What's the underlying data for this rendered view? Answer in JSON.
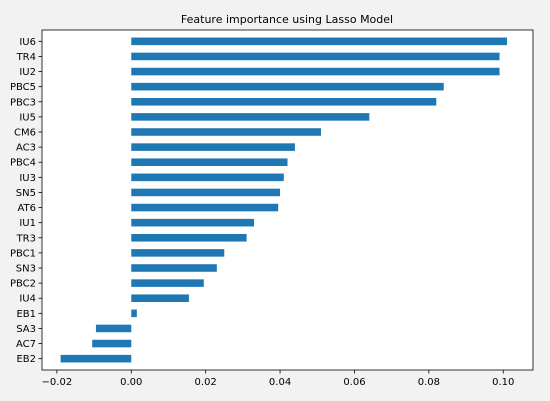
{
  "chart_data": {
    "type": "bar",
    "orientation": "horizontal",
    "title": "Feature importance using Lasso Model",
    "xlabel": "",
    "ylabel": "",
    "bar_color": "#1f77b4",
    "xlim": [
      -0.024,
      0.108
    ],
    "xticks": [
      -0.02,
      0.0,
      0.02,
      0.04,
      0.06,
      0.08,
      0.1
    ],
    "xtick_labels": [
      "−0.02",
      "0.00",
      "0.02",
      "0.04",
      "0.06",
      "0.08",
      "0.10"
    ],
    "grid": false,
    "categories": [
      "IU6",
      "TR4",
      "IU2",
      "PBC5",
      "PBC3",
      "IU5",
      "CM6",
      "AC3",
      "PBC4",
      "IU3",
      "SN5",
      "AT6",
      "IU1",
      "TR3",
      "PBC1",
      "SN3",
      "PBC2",
      "IU4",
      "EB1",
      "SA3",
      "AC7",
      "EB2"
    ],
    "values": [
      0.101,
      0.099,
      0.099,
      0.084,
      0.082,
      0.064,
      0.051,
      0.044,
      0.042,
      0.041,
      0.04,
      0.0395,
      0.033,
      0.031,
      0.025,
      0.023,
      0.0195,
      0.0155,
      0.0015,
      -0.0095,
      -0.0105,
      -0.019
    ]
  }
}
